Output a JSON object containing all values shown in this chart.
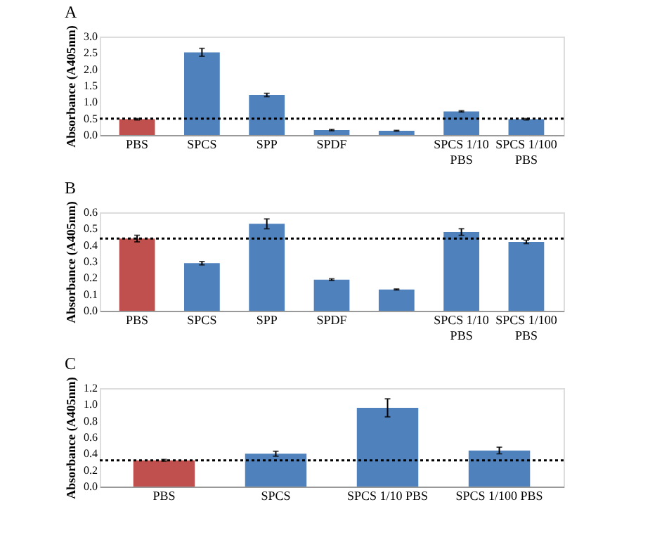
{
  "chart_data": [
    {
      "type": "bar",
      "title": "A",
      "ylabel": "Absorbance (A405nm)",
      "categories": [
        "PBS",
        "SPCS",
        "SPP",
        "SPDF",
        null,
        "SPCS 1/10\nPBS",
        "SPCS 1/100\nPBS"
      ],
      "values": [
        0.48,
        2.52,
        1.22,
        0.15,
        0.13,
        0.72,
        0.48
      ],
      "errors": [
        0.02,
        0.12,
        0.05,
        0.02,
        0.01,
        0.02,
        0.02
      ],
      "colors": [
        "#c0504d",
        "#4f81bd",
        "#4f81bd",
        "#4f81bd",
        "#4f81bd",
        "#4f81bd",
        "#4f81bd"
      ],
      "ylim": [
        0,
        3.0
      ],
      "yticks": [
        {
          "value": 0,
          "label": "0.0"
        },
        0.5,
        {
          "value": 1,
          "label": "1.0"
        },
        1.5,
        {
          "value": 2,
          "label": "2.0"
        },
        2.5,
        {
          "value": 3,
          "label": "3.0"
        }
      ],
      "ref_lines": [
        {
          "axis": "y",
          "value": 0.5,
          "color": "#000000",
          "line_style": "dotted"
        }
      ],
      "grid": false,
      "legend": false
    },
    {
      "type": "bar",
      "title": "B",
      "ylabel": "Absorbance (A405nm)",
      "categories": [
        "PBS",
        "SPCS",
        "SPP",
        "SPDF",
        null,
        "SPCS 1/10\nPBS",
        "SPCS 1/100\nPBS"
      ],
      "values": [
        0.44,
        0.29,
        0.53,
        0.19,
        0.13,
        0.48,
        0.42
      ],
      "errors": [
        0.02,
        0.01,
        0.03,
        0.005,
        0.003,
        0.02,
        0.01
      ],
      "colors": [
        "#c0504d",
        "#4f81bd",
        "#4f81bd",
        "#4f81bd",
        "#4f81bd",
        "#4f81bd",
        "#4f81bd"
      ],
      "ylim": [
        0,
        0.6
      ],
      "yticks": [
        {
          "value": 0,
          "label": "0.0"
        },
        0.1,
        0.2,
        0.3,
        0.4,
        0.5,
        0.6
      ],
      "ref_lines": [
        {
          "axis": "y",
          "value": 0.44,
          "color": "#000000",
          "line_style": "dotted"
        }
      ],
      "grid": false,
      "legend": false
    },
    {
      "type": "bar",
      "title": "C",
      "ylabel": "Absorbance (A405nm)",
      "categories": [
        "PBS",
        "SPCS",
        "SPCS 1/10 PBS",
        "SPCS 1/100 PBS"
      ],
      "values": [
        0.32,
        0.4,
        0.96,
        0.44
      ],
      "errors": [
        0.01,
        0.03,
        0.11,
        0.04
      ],
      "colors": [
        "#c0504d",
        "#4f81bd",
        "#4f81bd",
        "#4f81bd"
      ],
      "ylim": [
        0,
        1.2
      ],
      "yticks": [
        {
          "value": 0,
          "label": "0.0"
        },
        0.2,
        0.4,
        0.6,
        0.8,
        {
          "value": 1,
          "label": "1.0"
        },
        1.2
      ],
      "ref_lines": [
        {
          "axis": "y",
          "value": 0.32,
          "color": "#000000",
          "line_style": "dotted"
        }
      ],
      "grid": false,
      "legend": false
    }
  ]
}
